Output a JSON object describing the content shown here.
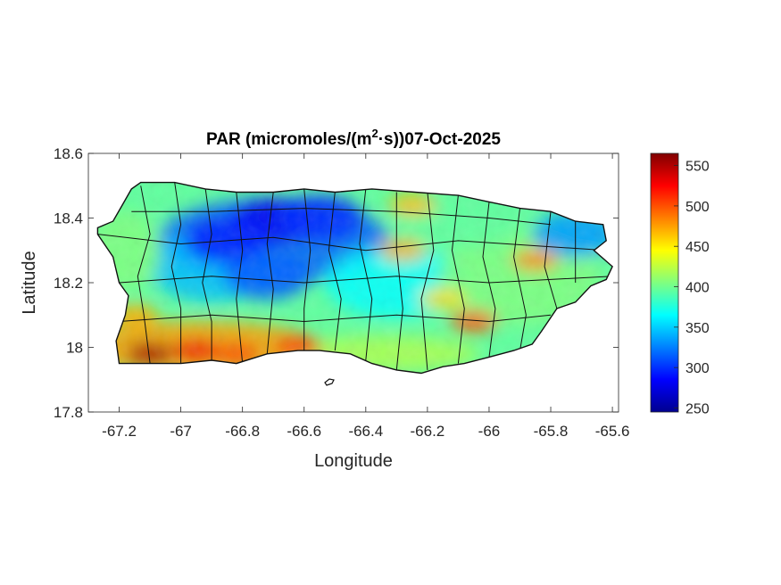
{
  "chart_data": {
    "type": "heatmap",
    "title": {
      "prefix": "PAR (micromoles/(m",
      "superscript": "2",
      "suffix": "·s))07-Oct-2025"
    },
    "xlabel": "Longitude",
    "ylabel": "Latitude",
    "xlim": [
      -67.3,
      -65.58
    ],
    "ylim": [
      17.8,
      18.6
    ],
    "xticks": [
      -67.2,
      -67,
      -66.8,
      -66.6,
      -66.4,
      -66.2,
      -66,
      -65.8,
      -65.6
    ],
    "xtick_labels": [
      "-67.2",
      "-67",
      "-66.8",
      "-66.6",
      "-66.4",
      "-66.2",
      "-66",
      "-65.8",
      "-65.6"
    ],
    "yticks": [
      17.8,
      18,
      18.2,
      18.4,
      18.6
    ],
    "ytick_labels": [
      "17.8",
      "18",
      "18.2",
      "18.4",
      "18.6"
    ],
    "colorbar": {
      "colormap": "jet",
      "clim": [
        245,
        565
      ],
      "ticks": [
        250,
        300,
        350,
        400,
        450,
        500,
        550
      ],
      "tick_labels": [
        "250",
        "300",
        "350",
        "400",
        "450",
        "500",
        "550"
      ]
    },
    "grid": false,
    "legend": "none",
    "outline": [
      [
        -67.27,
        18.37
      ],
      [
        -67.22,
        18.39
      ],
      [
        -67.19,
        18.44
      ],
      [
        -67.16,
        18.49
      ],
      [
        -67.13,
        18.51
      ],
      [
        -67.02,
        18.51
      ],
      [
        -66.92,
        18.49
      ],
      [
        -66.82,
        18.48
      ],
      [
        -66.7,
        18.48
      ],
      [
        -66.6,
        18.49
      ],
      [
        -66.5,
        18.48
      ],
      [
        -66.38,
        18.49
      ],
      [
        -66.24,
        18.48
      ],
      [
        -66.1,
        18.47
      ],
      [
        -66.0,
        18.45
      ],
      [
        -65.9,
        18.43
      ],
      [
        -65.8,
        18.42
      ],
      [
        -65.72,
        18.39
      ],
      [
        -65.63,
        18.38
      ],
      [
        -65.62,
        18.33
      ],
      [
        -65.66,
        18.3
      ],
      [
        -65.6,
        18.25
      ],
      [
        -65.62,
        18.21
      ],
      [
        -65.67,
        18.19
      ],
      [
        -65.72,
        18.14
      ],
      [
        -65.78,
        18.12
      ],
      [
        -65.83,
        18.05
      ],
      [
        -65.86,
        18.01
      ],
      [
        -65.92,
        17.99
      ],
      [
        -66.0,
        17.97
      ],
      [
        -66.08,
        17.95
      ],
      [
        -66.15,
        17.94
      ],
      [
        -66.22,
        17.92
      ],
      [
        -66.3,
        17.93
      ],
      [
        -66.38,
        17.95
      ],
      [
        -66.45,
        17.98
      ],
      [
        -66.55,
        17.99
      ],
      [
        -66.62,
        17.99
      ],
      [
        -66.72,
        17.98
      ],
      [
        -66.82,
        17.95
      ],
      [
        -66.9,
        17.96
      ],
      [
        -67.0,
        17.95
      ],
      [
        -67.1,
        17.95
      ],
      [
        -67.2,
        17.95
      ],
      [
        -67.21,
        18.02
      ],
      [
        -67.18,
        18.1
      ],
      [
        -67.17,
        18.16
      ],
      [
        -67.2,
        18.2
      ],
      [
        -67.22,
        18.28
      ],
      [
        -67.27,
        18.35
      ]
    ],
    "hotspots": [
      {
        "lon": -67.1,
        "lat": 17.98,
        "value": 555
      },
      {
        "lon": -66.95,
        "lat": 17.99,
        "value": 530
      },
      {
        "lon": -66.82,
        "lat": 17.98,
        "value": 500
      },
      {
        "lon": -66.62,
        "lat": 18.0,
        "value": 510
      },
      {
        "lon": -67.15,
        "lat": 18.1,
        "value": 470
      },
      {
        "lon": -66.25,
        "lat": 18.44,
        "value": 465
      },
      {
        "lon": -66.28,
        "lat": 18.3,
        "value": 470
      },
      {
        "lon": -66.05,
        "lat": 18.08,
        "value": 500
      },
      {
        "lon": -65.85,
        "lat": 18.27,
        "value": 480
      },
      {
        "lon": -66.15,
        "lat": 18.15,
        "value": 455
      }
    ],
    "coldspots": [
      {
        "lon": -66.7,
        "lat": 18.39,
        "value": 280
      },
      {
        "lon": -66.85,
        "lat": 18.33,
        "value": 295
      },
      {
        "lon": -66.55,
        "lat": 18.4,
        "value": 300
      },
      {
        "lon": -66.72,
        "lat": 18.22,
        "value": 315
      },
      {
        "lon": -65.72,
        "lat": 18.35,
        "value": 335
      }
    ],
    "base_value": 395
  }
}
